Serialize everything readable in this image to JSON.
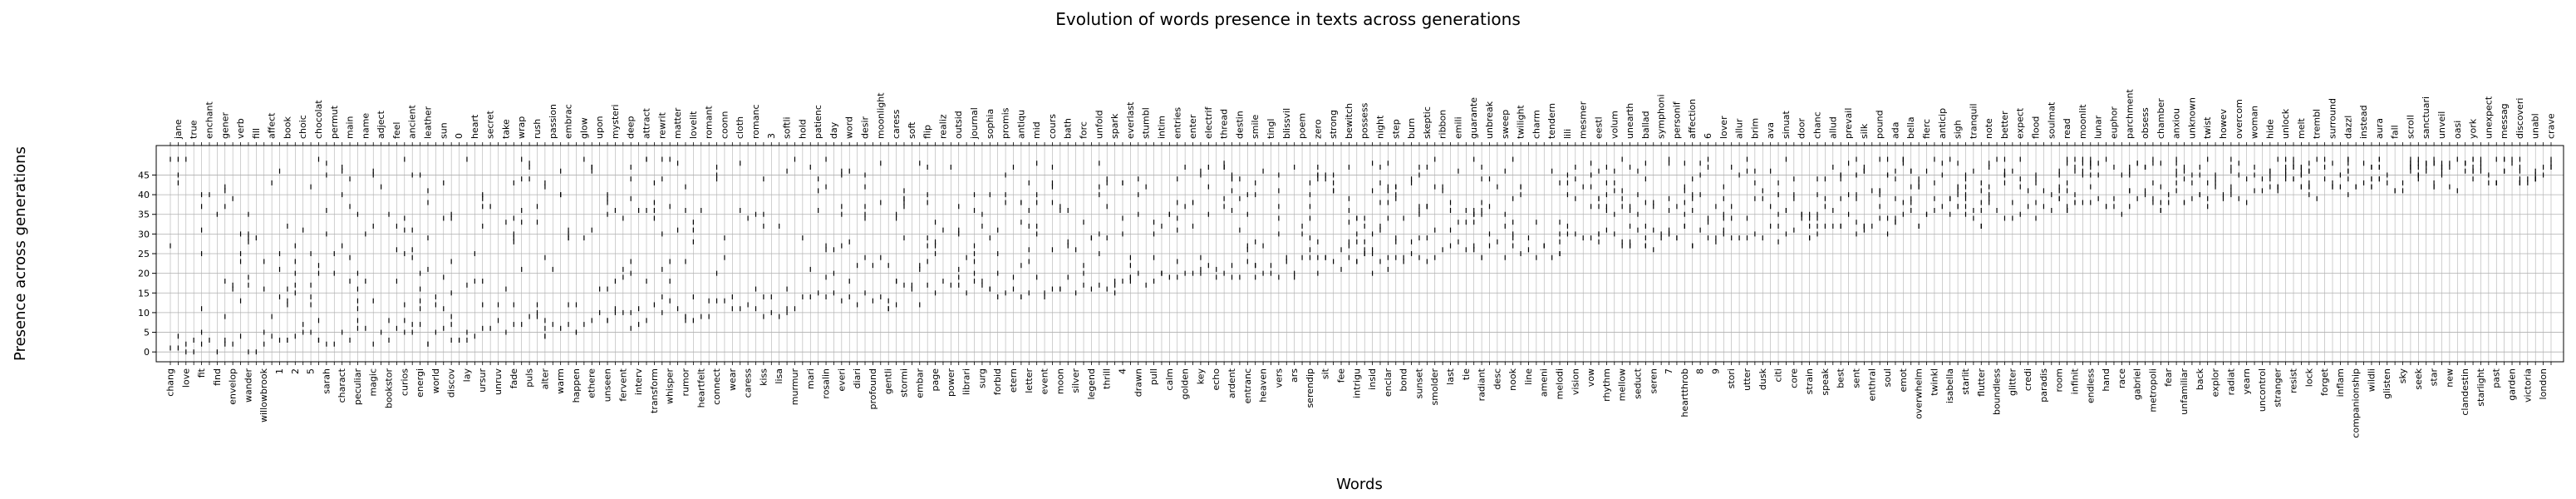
{
  "chart_data": {
    "type": "scatter",
    "title": "Evolution of words presence in texts across generations",
    "xlabel": "Words",
    "ylabel": "Presence across generations",
    "ylim": [
      -2.5,
      52.5
    ],
    "yticks": [
      0,
      5,
      10,
      15,
      20,
      25,
      30,
      35,
      40,
      45
    ],
    "grid": true,
    "legend": "none",
    "marker": "vertical-line",
    "marker_color": "#000000",
    "categories": [
      "chang",
      "jane",
      "love",
      "true",
      "fit",
      "enchant",
      "find",
      "gener",
      "envelop",
      "verb",
      "wander",
      "fill",
      "willowbrook",
      "affect",
      "1",
      "book",
      "2",
      "choic",
      "5",
      "chocolat",
      "sarah",
      "permut",
      "charact",
      "main",
      "peculiar",
      "name",
      "magic",
      "adject",
      "bookstor",
      "feel",
      "curios",
      "ancient",
      "energi",
      "leather",
      "world",
      "sun",
      "discov",
      "0",
      "lay",
      "heart",
      "ursur",
      "secret",
      "unruv",
      "take",
      "fade",
      "wrap",
      "puls",
      "rush",
      "alter",
      "passion",
      "warm",
      "embrac",
      "happen",
      "glow",
      "ethere",
      "upon",
      "unseen",
      "mysteri",
      "fervent",
      "deep",
      "interv",
      "attract",
      "transform",
      "rewrit",
      "whisper",
      "matter",
      "rumor",
      "lovelit",
      "heartfelt",
      "romant",
      "connect",
      "coonn",
      "wear",
      "cloth",
      "caress",
      "romanc",
      "kiss",
      "3",
      "lisa",
      "softli",
      "murmur",
      "hold",
      "mari",
      "patienc",
      "rosalin",
      "day",
      "everi",
      "word",
      "diari",
      "desir",
      "profound",
      "moonlight",
      "gentli",
      "caress",
      "stormi",
      "soft",
      "embar",
      "flip",
      "page",
      "realiz",
      "power",
      "outsid",
      "librari",
      "journal",
      "surg",
      "sophia",
      "forbid",
      "promis",
      "etern",
      "antiqu",
      "letter",
      "mid",
      "event",
      "cours",
      "moon",
      "bath",
      "silver",
      "forc",
      "legend",
      "unfold",
      "thrill",
      "spark",
      "4",
      "everlast",
      "drawn",
      "stumbl",
      "pull",
      "intim",
      "calm",
      "entries",
      "golden",
      "enter",
      "key",
      "electrif",
      "echo",
      "thread",
      "ardent",
      "destin",
      "entranc",
      "smile",
      "heaven",
      "tingl",
      "vers",
      "blissvil",
      "ars",
      "poem",
      "serendip",
      "zero",
      "sit",
      "strong",
      "fee",
      "bewitch",
      "intrigu",
      "possess",
      "insid",
      "night",
      "enclar",
      "step",
      "bond",
      "burn",
      "sunset",
      "skeptic",
      "smolder",
      "ribbon",
      "last",
      "emili",
      "tie",
      "guarante",
      "radiant",
      "unbreak",
      "desc",
      "sweep",
      "nook",
      "twilight",
      "line",
      "charm",
      "ameni",
      "tendern",
      "melodi",
      "lili",
      "vision",
      "mesmer",
      "vow",
      "eestl",
      "rhythm",
      "volum",
      "mellow",
      "unearth",
      "seduct",
      "ballad",
      "seren",
      "symphoni",
      "7",
      "personif",
      "heartthrob",
      "affection",
      "8",
      "6",
      "9",
      "lover",
      "stori",
      "allur",
      "utter",
      "brim",
      "dusk",
      "ava",
      "citi",
      "sinuat",
      "core",
      "door",
      "strain",
      "chanc",
      "speak",
      "allud",
      "best",
      "prevail",
      "sent",
      "silk",
      "enthral",
      "pound",
      "soul",
      "ada",
      "emot",
      "bella",
      "overwhelm",
      "fierc",
      "twinkl",
      "anticip",
      "isabella",
      "sigh",
      "starlit",
      "tranquil",
      "flutter",
      "note",
      "boundless",
      "better",
      "glitter",
      "expect",
      "credi",
      "flood",
      "paradis",
      "soulmat",
      "room",
      "read",
      "infinit",
      "moonlit",
      "endless",
      "lunar",
      "hand",
      "euphor",
      "race",
      "parchment",
      "gabriel",
      "obsess",
      "metropoli",
      "chamber",
      "fear",
      "anxiou",
      "unfamiliar",
      "unknown",
      "back",
      "twist",
      "explor",
      "howev",
      "radiat",
      "overcom",
      "yearn",
      "woman",
      "uncontrol",
      "hide",
      "stranger",
      "unlock",
      "resist",
      "melt",
      "lock",
      "trembl",
      "forget",
      "surround",
      "inflam",
      "dazzl",
      "companionship",
      "instead",
      "wildli",
      "aura",
      "glisten",
      "fall",
      "sky",
      "scroll",
      "seek",
      "sanctuari",
      "star",
      "unveil",
      "new",
      "oasi",
      "clandestin",
      "york",
      "starlight",
      "unexpect",
      "past",
      "messag",
      "garden",
      "discoveri",
      "victoria",
      "unabl",
      "london",
      "crave"
    ]
  }
}
